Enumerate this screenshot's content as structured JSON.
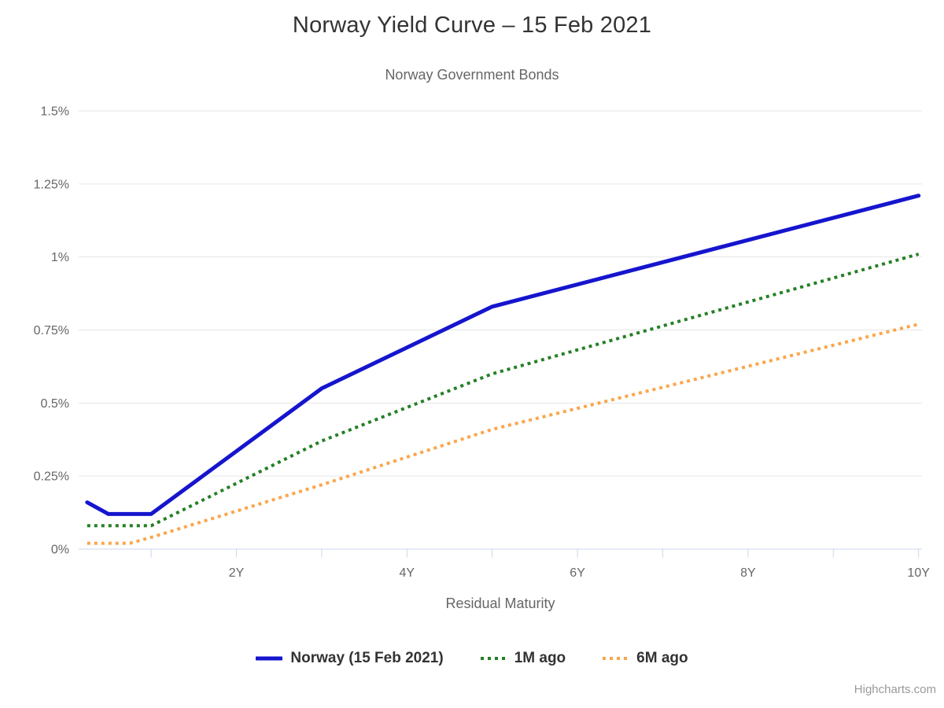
{
  "chart_data": {
    "type": "line",
    "title": "Norway Yield Curve – 15 Feb 2021",
    "subtitle": "Norway Government Bonds",
    "xlabel": "Residual Maturity",
    "ylabel": "",
    "x_unit": "years",
    "xlim": [
      0.15,
      10.04
    ],
    "ylim": [
      0,
      1.5
    ],
    "grid": true,
    "legend_position": "bottom",
    "y_ticks": [
      {
        "value": 0,
        "label": "0%"
      },
      {
        "value": 0.25,
        "label": "0.25%"
      },
      {
        "value": 0.5,
        "label": "0.5%"
      },
      {
        "value": 0.75,
        "label": "0.75%"
      },
      {
        "value": 1,
        "label": "1%"
      },
      {
        "value": 1.25,
        "label": "1.25%"
      },
      {
        "value": 1.5,
        "label": "1.5%"
      }
    ],
    "x_minor_ticks": [
      1,
      2,
      3,
      4,
      5,
      6,
      7,
      8,
      9,
      10
    ],
    "x_ticks": [
      {
        "value": 2,
        "label": "2Y"
      },
      {
        "value": 4,
        "label": "4Y"
      },
      {
        "value": 6,
        "label": "6Y"
      },
      {
        "value": 8,
        "label": "8Y"
      },
      {
        "value": 10,
        "label": "10Y"
      }
    ],
    "series": [
      {
        "name": "Norway (15 Feb 2021)",
        "color": "#1515CE",
        "dash": "solid",
        "points": [
          [
            0.25,
            0.16
          ],
          [
            0.5,
            0.12
          ],
          [
            1,
            0.12
          ],
          [
            3,
            0.55
          ],
          [
            5,
            0.83
          ],
          [
            10,
            1.21
          ]
        ]
      },
      {
        "name": "1M ago",
        "color": "#267F26",
        "dash": "dot",
        "points": [
          [
            0.25,
            0.08
          ],
          [
            0.5,
            0.08
          ],
          [
            1,
            0.08
          ],
          [
            3,
            0.37
          ],
          [
            5,
            0.6
          ],
          [
            10,
            1.01
          ]
        ]
      },
      {
        "name": "6M ago",
        "color": "#FAA64B",
        "dash": "dot",
        "points": [
          [
            0.25,
            0.02
          ],
          [
            0.5,
            0.02
          ],
          [
            0.75,
            0.02
          ],
          [
            1,
            0.04
          ],
          [
            3,
            0.22
          ],
          [
            5,
            0.41
          ],
          [
            10,
            0.77
          ]
        ]
      }
    ],
    "credits": "Highcharts.com",
    "colors": {
      "gridline": "#E6E6E6",
      "axis_line": "#CCD6EB",
      "title_text": "#333333",
      "muted_text": "#666666",
      "credits_text": "#999999"
    }
  }
}
